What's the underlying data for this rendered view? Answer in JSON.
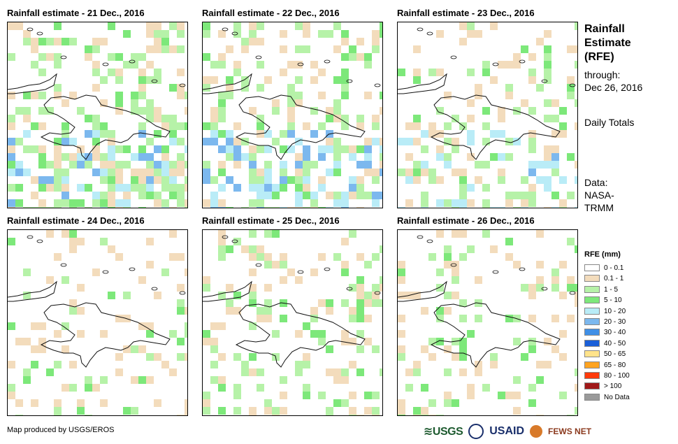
{
  "panels": [
    {
      "title": "Rainfall estimate - 21 Dec., 2016",
      "seed": 21,
      "wet": 0.55,
      "heavy": 0.5
    },
    {
      "title": "Rainfall estimate - 22 Dec., 2016",
      "seed": 22,
      "wet": 0.45,
      "heavy": 0.6
    },
    {
      "title": "Rainfall estimate - 23 Dec., 2016",
      "seed": 23,
      "wet": 0.3,
      "heavy": 0.35
    },
    {
      "title": "Rainfall estimate - 24 Dec., 2016",
      "seed": 24,
      "wet": 0.15,
      "heavy": 0.0
    },
    {
      "title": "Rainfall estimate - 25 Dec., 2016",
      "seed": 25,
      "wet": 0.3,
      "heavy": 0.0
    },
    {
      "title": "Rainfall estimate - 26 Dec., 2016",
      "seed": 26,
      "wet": 0.2,
      "heavy": 0.0
    }
  ],
  "side": {
    "title": "Rainfall Estimate (RFE)",
    "through_label": "through:",
    "through_date": "Dec 26, 2016",
    "period": "Daily Totals",
    "data_label": "Data:",
    "data_source": "NASA-TRMM"
  },
  "legend": {
    "title": "RFE (mm)",
    "items": [
      {
        "label": "0 - 0.1",
        "color": "#ffffff"
      },
      {
        "label": "0.1 - 1",
        "color": "#f3dcbc"
      },
      {
        "label": "1 - 5",
        "color": "#b6f2a8"
      },
      {
        "label": "5 - 10",
        "color": "#7de87a"
      },
      {
        "label": "10 - 20",
        "color": "#b9ecf7"
      },
      {
        "label": "20 - 30",
        "color": "#7cb8ee"
      },
      {
        "label": "30 - 40",
        "color": "#3f8fe6"
      },
      {
        "label": "40 - 50",
        "color": "#1a5fd8"
      },
      {
        "label": "50 - 65",
        "color": "#ffe38a"
      },
      {
        "label": "65 - 80",
        "color": "#ffa320"
      },
      {
        "label": "80 - 100",
        "color": "#ff3a0a"
      },
      {
        "label": "> 100",
        "color": "#a01818"
      },
      {
        "label": "No Data",
        "color": "#9a9a9a"
      }
    ]
  },
  "footer": "Map produced by USGS/EROS",
  "logos": {
    "usgs": "≋USGS",
    "usaid": "USAID",
    "fews": "FEWS NET"
  }
}
